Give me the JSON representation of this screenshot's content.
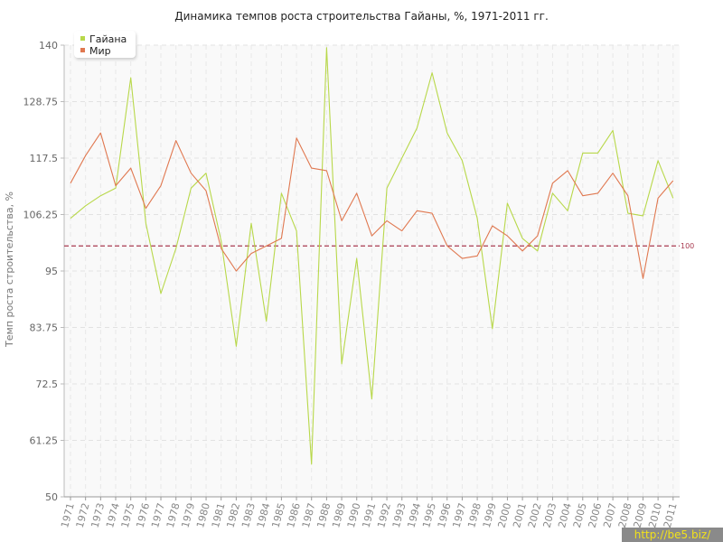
{
  "chart_data": {
    "type": "line",
    "title": "Динамика темпов роста строительства Гайаны, %, 1971-2011 гг.",
    "xlabel": "",
    "ylabel": "Темп роста строительства, %",
    "ylim": [
      50,
      140
    ],
    "yticks": [
      "50",
      "61.25",
      "72.5",
      "83.75",
      "95",
      "106.25",
      "117.5",
      "128.75",
      "140"
    ],
    "x": [
      "1971",
      "1972",
      "1973",
      "1974",
      "1975",
      "1976",
      "1977",
      "1978",
      "1979",
      "1980",
      "1981",
      "1982",
      "1983",
      "1984",
      "1985",
      "1986",
      "1987",
      "1988",
      "1989",
      "1990",
      "1991",
      "1992",
      "1993",
      "1994",
      "1995",
      "1996",
      "1997",
      "1998",
      "1999",
      "2000",
      "2001",
      "2002",
      "2003",
      "2004",
      "2005",
      "2006",
      "2007",
      "2008",
      "2009",
      "2010",
      "2011"
    ],
    "series": [
      {
        "name": "Гайана",
        "color": "#b8d84a",
        "values": [
          105.5,
          108.0,
          110.0,
          111.5,
          133.5,
          104.5,
          90.5,
          99.5,
          111.5,
          114.5,
          101.0,
          80.0,
          104.5,
          85.0,
          110.5,
          103.0,
          56.5,
          139.5,
          76.5,
          97.5,
          69.5,
          111.5,
          117.5,
          123.5,
          134.5,
          122.5,
          117.0,
          105.5,
          83.5,
          108.5,
          101.5,
          99.0,
          110.5,
          107.0,
          118.5,
          118.5,
          123.0,
          106.5,
          106.0,
          117.0,
          109.5
        ]
      },
      {
        "name": "Мир",
        "color": "#e07850",
        "values": [
          112.5,
          118.0,
          122.5,
          112.0,
          115.5,
          107.5,
          112.0,
          121.0,
          114.5,
          111.0,
          99.5,
          95.0,
          98.5,
          100.0,
          101.5,
          121.5,
          115.5,
          115.0,
          105.0,
          110.5,
          102.0,
          105.0,
          103.0,
          107.0,
          106.5,
          100.0,
          97.5,
          98.0,
          104.0,
          102.0,
          99.0,
          102.0,
          112.5,
          115.0,
          110.0,
          110.5,
          114.5,
          110.0,
          93.5,
          109.5,
          113.0
        ]
      }
    ],
    "reference_line": {
      "value": 100,
      "label": "100",
      "color": "#a83a50"
    },
    "grid": true,
    "legend_position": "top-left"
  },
  "watermark": "http://be5.biz/"
}
